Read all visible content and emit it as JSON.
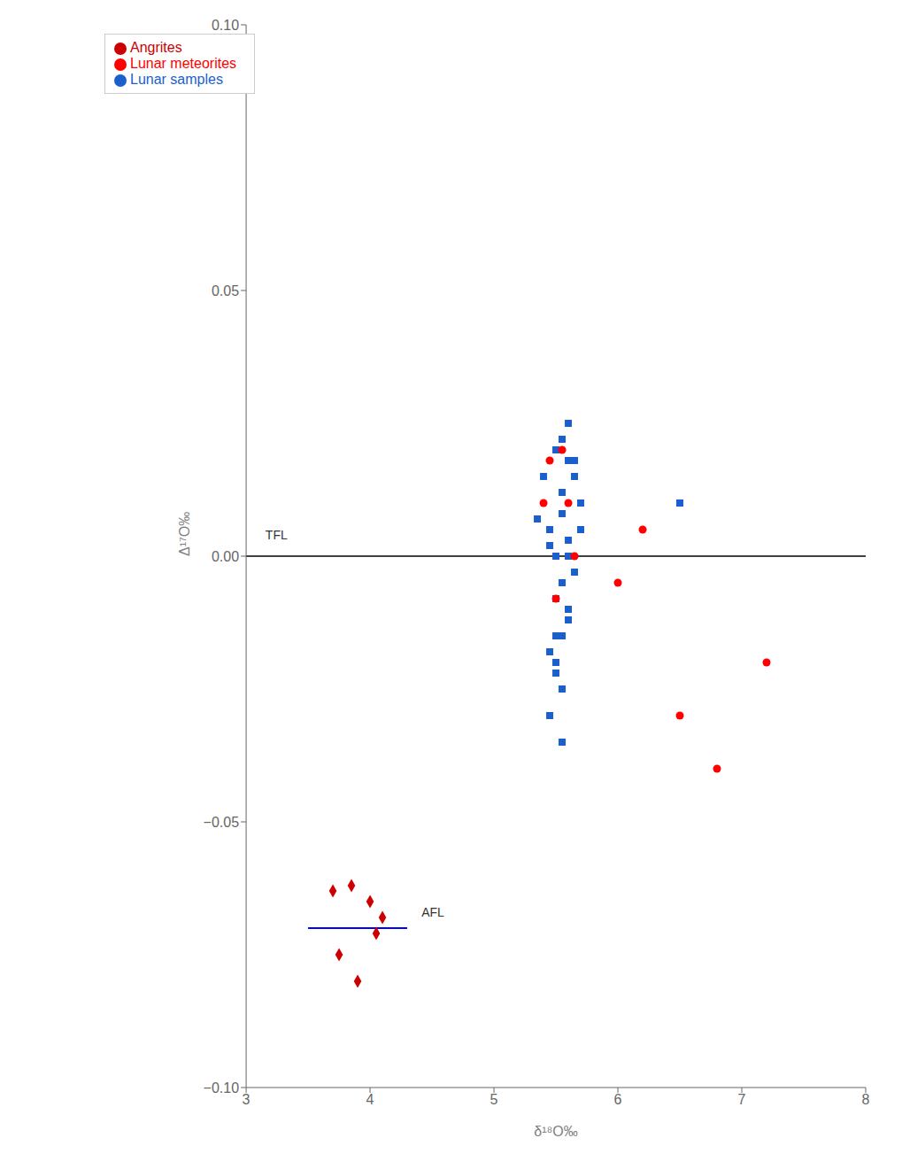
{
  "chart_data": {
    "type": "scatter",
    "x_label": "δ¹⁸O‰",
    "y_label": "Δ¹⁷O‰",
    "series": [
      {
        "name": "Angrites",
        "color": "#cc0000",
        "marker": "diamond",
        "x": [
          3.7,
          3.85,
          4.0,
          4.1,
          3.75,
          4.05,
          3.9
        ],
        "values": [
          -0.063,
          -0.062,
          -0.065,
          -0.068,
          -0.075,
          -0.071,
          -0.08
        ]
      },
      {
        "name": "Lunar samples",
        "color": "#1a5fcc",
        "marker": "square",
        "x": [
          5.4,
          5.5,
          5.55,
          5.6,
          5.65,
          5.7,
          5.45,
          5.5,
          5.55,
          5.6,
          5.5,
          5.45,
          5.55,
          5.6,
          5.65,
          5.5,
          5.55,
          5.45,
          5.6,
          5.55,
          5.65,
          5.7,
          5.5,
          5.6,
          5.55,
          5.45,
          5.35,
          6.5,
          5.55,
          5.6,
          5.5
        ],
        "values": [
          0.015,
          0.02,
          0.022,
          0.018,
          0.015,
          0.01,
          0.005,
          0.0,
          -0.005,
          -0.01,
          -0.015,
          -0.018,
          0.008,
          0.003,
          -0.003,
          -0.02,
          -0.025,
          -0.03,
          -0.012,
          0.012,
          0.018,
          0.005,
          -0.008,
          0.025,
          -0.035,
          0.002,
          0.007,
          0.01,
          -0.015,
          0.0,
          -0.022
        ]
      },
      {
        "name": "Lunar meteorites",
        "color": "red",
        "marker": "circle",
        "x": [
          5.4,
          5.55,
          5.6,
          5.65,
          6.0,
          6.5,
          6.8,
          7.2,
          6.2,
          5.5,
          5.45
        ],
        "values": [
          0.01,
          0.02,
          0.01,
          0.0,
          -0.005,
          -0.03,
          -0.04,
          -0.02,
          0.005,
          -0.008,
          0.018
        ]
      }
    ],
    "lines": [
      {
        "y": 0,
        "color": "black"
      },
      {
        "x": [
          3.5,
          4.3
        ],
        "y": [
          -0.07,
          -0.07
        ],
        "color": "blue"
      }
    ],
    "annotations": [
      {
        "text": "TFL",
        "x": 3.12,
        "y": 0.004
      },
      {
        "text": "AFL",
        "x": 4.38,
        "y": -0.067
      }
    ],
    "xlim": [
      3,
      8
    ],
    "ylim": [
      -0.1,
      0.1
    ],
    "xticks": [
      3,
      4,
      5,
      6,
      7,
      8
    ],
    "yticks": [
      {
        "value": -0.1,
        "label": "−0.10"
      },
      {
        "value": -0.05,
        "label": "−0.05"
      },
      {
        "value": 0,
        "label": "0.00"
      },
      {
        "value": 0.05,
        "label": "0.05"
      },
      {
        "value": 0.1,
        "label": "0.10"
      }
    ],
    "grid": false,
    "legend": "upper left"
  }
}
